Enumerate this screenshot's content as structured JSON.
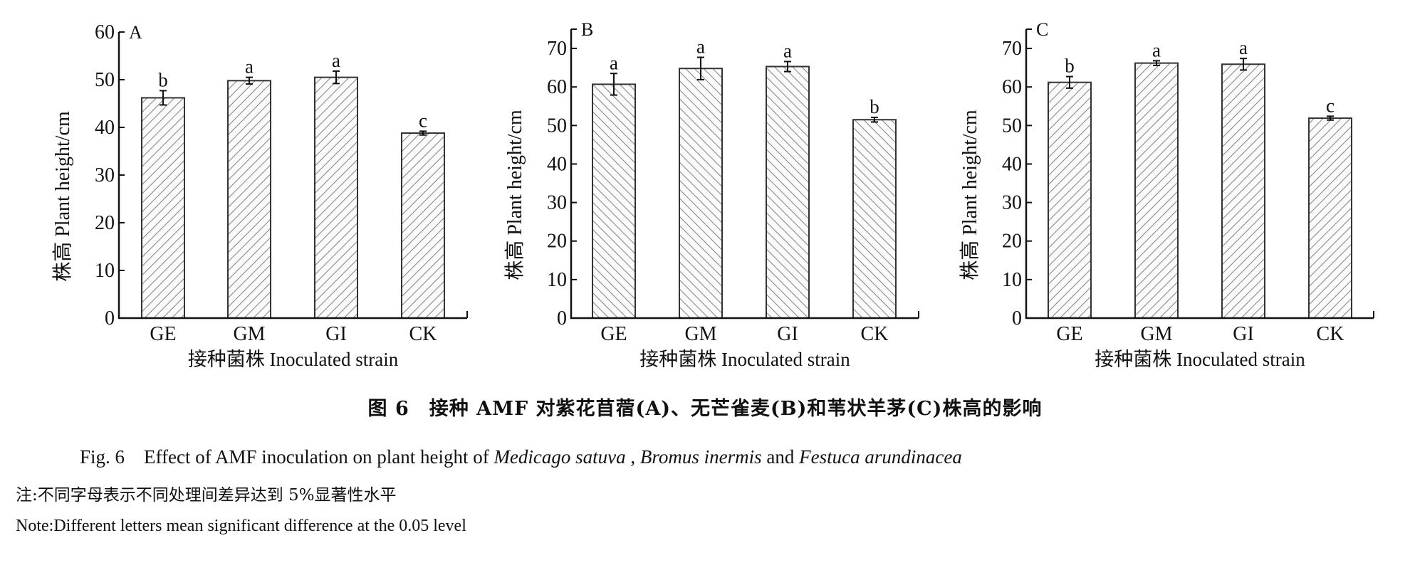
{
  "chart_data": [
    {
      "type": "bar",
      "panel": "A",
      "categories": [
        "GE",
        "GM",
        "GI",
        "CK"
      ],
      "values": [
        46.2,
        49.8,
        50.5,
        38.8
      ],
      "errors": [
        1.5,
        0.7,
        1.3,
        0.4
      ],
      "significance": [
        "b",
        "a",
        "a",
        "c"
      ],
      "xlabel": "接种菌株 Inoculated strain",
      "ylabel": "株高 Plant height/cm",
      "ylim": [
        0,
        60
      ],
      "yticks": [
        0,
        10,
        20,
        30,
        40,
        50,
        60
      ],
      "hatch": "forward",
      "grid": false
    },
    {
      "type": "bar",
      "panel": "B",
      "categories": [
        "GE",
        "GM",
        "GI",
        "CK"
      ],
      "values": [
        60.7,
        64.8,
        65.3,
        51.5
      ],
      "errors": [
        2.8,
        2.9,
        1.3,
        0.6
      ],
      "significance": [
        "a",
        "a",
        "a",
        "b"
      ],
      "xlabel": "接种菌株 Inoculated strain",
      "ylabel": "株高 Plant height/cm",
      "ylim": [
        0,
        75
      ],
      "yticks": [
        0,
        10,
        20,
        30,
        40,
        50,
        60,
        70
      ],
      "hatch": "backward",
      "grid": false
    },
    {
      "type": "bar",
      "panel": "C",
      "categories": [
        "GE",
        "GM",
        "GI",
        "CK"
      ],
      "values": [
        61.2,
        66.2,
        65.9,
        51.9
      ],
      "errors": [
        1.5,
        0.6,
        1.5,
        0.5
      ],
      "significance": [
        "b",
        "a",
        "a",
        "c"
      ],
      "xlabel": "接种菌株 Inoculated strain",
      "ylabel": "株高 Plant height/cm",
      "ylim": [
        0,
        75
      ],
      "yticks": [
        0,
        10,
        20,
        30,
        40,
        50,
        60,
        70
      ],
      "hatch": "forward",
      "grid": false
    }
  ],
  "caption": {
    "cn": "图 6　接种 AMF 对紫花苜蓿(A)、无芒雀麦(B)和苇状羊茅(C)株高的影响",
    "en_prefix": "Fig. 6　Effect of AMF inoculation on plant height of ",
    "species1": "Medicago satuva",
    "sep1": " , ",
    "species2": "Bromus inermis",
    "sep2": " and ",
    "species3": "Festuca arundinacea"
  },
  "notes": {
    "cn": "注:不同字母表示不同处理间差异达到 5%显著性水平",
    "en": "Note:Different letters mean significant difference at the 0.05 level"
  },
  "colors": {
    "axis": "#111111",
    "bar_outline": "#333333",
    "hatch": "#8a8a8a"
  }
}
